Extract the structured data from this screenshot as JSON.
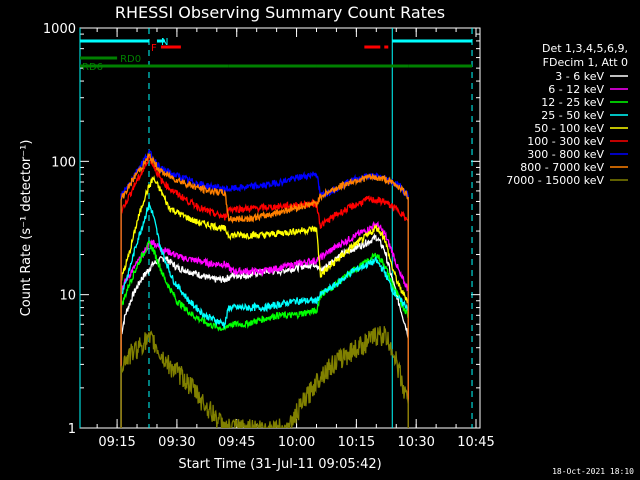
{
  "chart_data": {
    "type": "line",
    "title": "RHESSI Observing Summary Count Rates",
    "xlabel": "Start Time (31-Jul-11 09:05:42)",
    "ylabel": "Count Rate (s⁻¹ detector⁻¹)",
    "yscale": "log",
    "ylim": [
      1,
      1000
    ],
    "yticks": [
      {
        "value": 1,
        "label": "1"
      },
      {
        "value": 10,
        "label": "10"
      },
      {
        "value": 100,
        "label": "100"
      },
      {
        "value": 1000,
        "label": "1000"
      }
    ],
    "xlim": [
      "09:05:42",
      "10:46:00"
    ],
    "xticks": [
      {
        "time": "09:15",
        "label": "09:15"
      },
      {
        "time": "09:30",
        "label": "09:30"
      },
      {
        "time": "09:45",
        "label": "09:45"
      },
      {
        "time": "10:00",
        "label": "10:00"
      },
      {
        "time": "10:15",
        "label": "10:15"
      },
      {
        "time": "10:30",
        "label": "10:30"
      },
      {
        "time": "10:45",
        "label": "10:45"
      }
    ],
    "legend_header": [
      "Det 1,3,4,5,6,9,",
      "FDecim 1, Att 0"
    ],
    "legend_position": "top-right",
    "flags": [
      {
        "label": "N",
        "color": "#00ffff",
        "segments": [
          [
            "09:05:42",
            "09:23:00"
          ],
          [
            "09:25:00",
            "09:27:00"
          ],
          [
            "10:24:00",
            "10:44:00"
          ]
        ]
      },
      {
        "label": "F",
        "color": "#ff0000",
        "segments": [
          [
            "09:26:00",
            "09:31:00"
          ],
          [
            "10:17:00",
            "10:21:00"
          ],
          [
            "10:22:00",
            "10:23:00"
          ]
        ]
      },
      {
        "label": "RD0",
        "color": "#008000",
        "segments": [
          [
            "09:05:42",
            "09:15:00"
          ]
        ]
      },
      {
        "label": "RD6",
        "color": "#008000",
        "segments": [
          [
            "09:05:42",
            "09:43:00"
          ],
          [
            "09:43:00",
            "10:05:00"
          ],
          [
            "10:05:00",
            "10:28:00"
          ],
          [
            "10:28:00",
            "10:44:00"
          ]
        ]
      }
    ],
    "vlines": [
      {
        "time": "09:05:42",
        "color": "#00ffff",
        "style": "solid"
      },
      {
        "time": "09:23:00",
        "color": "#00ffff",
        "style": "dashed"
      },
      {
        "time": "10:24:00",
        "color": "#00ffff",
        "style": "solid"
      },
      {
        "time": "10:44:00",
        "color": "#00ffff",
        "style": "dashed"
      }
    ],
    "series": [
      {
        "name": "3 - 6 keV",
        "color": "#ffffff",
        "points": [
          [
            "09:16:00",
            5
          ],
          [
            "09:17:00",
            7
          ],
          [
            "09:19:00",
            10
          ],
          [
            "09:21:00",
            13
          ],
          [
            "09:24:00",
            17
          ],
          [
            "09:27:00",
            19
          ],
          [
            "09:30:00",
            16
          ],
          [
            "09:33:00",
            15
          ],
          [
            "09:36:00",
            14
          ],
          [
            "09:39:00",
            13
          ],
          [
            "09:41:00",
            13
          ],
          [
            "09:42:00",
            13
          ],
          [
            "09:44:00",
            14
          ],
          [
            "09:48:00",
            14
          ],
          [
            "09:52:00",
            15
          ],
          [
            "09:56:00",
            15
          ],
          [
            "10:00:00",
            16
          ],
          [
            "10:04:00",
            17
          ],
          [
            "10:05:00",
            17
          ],
          [
            "10:06:00",
            15
          ],
          [
            "10:10:00",
            19
          ],
          [
            "10:14:00",
            22
          ],
          [
            "10:18:00",
            25
          ],
          [
            "10:20:00",
            27
          ],
          [
            "10:22:00",
            22
          ],
          [
            "10:24:00",
            13
          ],
          [
            "10:26:00",
            8
          ],
          [
            "10:28:00",
            5
          ]
        ]
      },
      {
        "name": "6 - 12 keV",
        "color": "#ff00ff",
        "points": [
          [
            "09:16:00",
            11
          ],
          [
            "09:18:00",
            14
          ],
          [
            "09:21:00",
            19
          ],
          [
            "09:23:00",
            24
          ],
          [
            "09:24:00",
            25
          ],
          [
            "09:26:00",
            22
          ],
          [
            "09:28:00",
            21
          ],
          [
            "09:31:00",
            19
          ],
          [
            "09:35:00",
            18
          ],
          [
            "09:39:00",
            17
          ],
          [
            "09:42:00",
            17
          ],
          [
            "09:44:00",
            15
          ],
          [
            "09:48:00",
            15
          ],
          [
            "09:52:00",
            15
          ],
          [
            "09:56:00",
            16
          ],
          [
            "10:00:00",
            17
          ],
          [
            "10:04:00",
            18
          ],
          [
            "10:05:00",
            18
          ],
          [
            "10:06:00",
            19
          ],
          [
            "10:10:00",
            23
          ],
          [
            "10:14:00",
            27
          ],
          [
            "10:18:00",
            31
          ],
          [
            "10:20:00",
            34
          ],
          [
            "10:22:00",
            29
          ],
          [
            "10:24:00",
            21
          ],
          [
            "10:26:00",
            14
          ],
          [
            "10:28:00",
            11
          ]
        ]
      },
      {
        "name": "12 - 25 keV",
        "color": "#00ff00",
        "points": [
          [
            "09:16:00",
            8
          ],
          [
            "09:18:00",
            12
          ],
          [
            "09:21:00",
            19
          ],
          [
            "09:23:00",
            24
          ],
          [
            "09:24:00",
            22
          ],
          [
            "09:27:00",
            13
          ],
          [
            "09:30:00",
            9
          ],
          [
            "09:34:00",
            7
          ],
          [
            "09:38:00",
            6
          ],
          [
            "09:42:00",
            5.5
          ],
          [
            "09:43:00",
            6
          ],
          [
            "09:47:00",
            6
          ],
          [
            "09:51:00",
            6.5
          ],
          [
            "09:55:00",
            7
          ],
          [
            "09:59:00",
            7
          ],
          [
            "10:04:00",
            7.5
          ],
          [
            "10:05:00",
            7.5
          ],
          [
            "10:06:00",
            10
          ],
          [
            "10:10:00",
            12
          ],
          [
            "10:14:00",
            15
          ],
          [
            "10:18:00",
            18
          ],
          [
            "10:20:00",
            20
          ],
          [
            "10:22:00",
            17
          ],
          [
            "10:24:00",
            12
          ],
          [
            "10:26:00",
            9
          ],
          [
            "10:28:00",
            7
          ]
        ]
      },
      {
        "name": "25 - 50 keV",
        "color": "#00ffff",
        "points": [
          [
            "09:16:00",
            10
          ],
          [
            "09:18:00",
            15
          ],
          [
            "09:20:00",
            25
          ],
          [
            "09:22:00",
            38
          ],
          [
            "09:23:00",
            48
          ],
          [
            "09:24:00",
            40
          ],
          [
            "09:26:00",
            22
          ],
          [
            "09:29:00",
            13
          ],
          [
            "09:33:00",
            9
          ],
          [
            "09:37:00",
            7
          ],
          [
            "09:42:00",
            6
          ],
          [
            "09:43:00",
            8
          ],
          [
            "09:47:00",
            8
          ],
          [
            "09:52:00",
            8
          ],
          [
            "09:56:00",
            8.5
          ],
          [
            "10:00:00",
            9
          ],
          [
            "10:04:00",
            9
          ],
          [
            "10:05:00",
            9
          ],
          [
            "10:06:00",
            10
          ],
          [
            "10:10:00",
            12
          ],
          [
            "10:14:00",
            15
          ],
          [
            "10:18:00",
            17
          ],
          [
            "10:20:00",
            18
          ],
          [
            "10:22:00",
            15
          ],
          [
            "10:24:00",
            11
          ],
          [
            "10:26:00",
            9
          ],
          [
            "10:28:00",
            8
          ]
        ]
      },
      {
        "name": "50 - 100 keV",
        "color": "#ffff00",
        "points": [
          [
            "09:16:00",
            13
          ],
          [
            "09:18:00",
            20
          ],
          [
            "09:20:00",
            35
          ],
          [
            "09:22:00",
            55
          ],
          [
            "09:24:00",
            75
          ],
          [
            "09:26:00",
            60
          ],
          [
            "09:28:00",
            45
          ],
          [
            "09:31:00",
            40
          ],
          [
            "09:35:00",
            35
          ],
          [
            "09:39:00",
            33
          ],
          [
            "09:42:00",
            31
          ],
          [
            "09:43:00",
            28
          ],
          [
            "09:47:00",
            28
          ],
          [
            "09:52:00",
            28
          ],
          [
            "09:56:00",
            29
          ],
          [
            "10:00:00",
            30
          ],
          [
            "10:04:00",
            31
          ],
          [
            "10:05:00",
            31
          ],
          [
            "10:06:00",
            14
          ],
          [
            "10:10:00",
            18
          ],
          [
            "10:14:00",
            23
          ],
          [
            "10:18:00",
            28
          ],
          [
            "10:20:00",
            32
          ],
          [
            "10:22:00",
            27
          ],
          [
            "10:24:00",
            16
          ],
          [
            "10:26:00",
            11
          ],
          [
            "10:28:00",
            9
          ]
        ]
      },
      {
        "name": "100 - 300 keV",
        "color": "#ff0000",
        "points": [
          [
            "09:16:00",
            42
          ],
          [
            "09:18:00",
            55
          ],
          [
            "09:20:00",
            72
          ],
          [
            "09:22:00",
            90
          ],
          [
            "09:23:00",
            110
          ],
          [
            "09:24:00",
            95
          ],
          [
            "09:26:00",
            72
          ],
          [
            "09:29:00",
            60
          ],
          [
            "09:33:00",
            50
          ],
          [
            "09:37:00",
            43
          ],
          [
            "09:42:00",
            38
          ],
          [
            "09:43:00",
            44
          ],
          [
            "09:47:00",
            44
          ],
          [
            "09:52:00",
            45
          ],
          [
            "09:56:00",
            46
          ],
          [
            "10:00:00",
            47
          ],
          [
            "10:04:00",
            48
          ],
          [
            "10:05:00",
            48
          ],
          [
            "10:06:00",
            33
          ],
          [
            "10:10:00",
            40
          ],
          [
            "10:14:00",
            46
          ],
          [
            "10:18:00",
            52
          ],
          [
            "10:22:00",
            50
          ],
          [
            "10:26:00",
            42
          ],
          [
            "10:28:00",
            35
          ]
        ]
      },
      {
        "name": "300 - 800 keV",
        "color": "#0000ff",
        "points": [
          [
            "09:16:00",
            55
          ],
          [
            "09:18:00",
            68
          ],
          [
            "09:20:00",
            85
          ],
          [
            "09:22:00",
            105
          ],
          [
            "09:23:00",
            118
          ],
          [
            "09:24:00",
            105
          ],
          [
            "09:26:00",
            88
          ],
          [
            "09:29:00",
            80
          ],
          [
            "09:33:00",
            72
          ],
          [
            "09:37:00",
            66
          ],
          [
            "09:42:00",
            62
          ],
          [
            "09:43:00",
            62
          ],
          [
            "09:47:00",
            64
          ],
          [
            "09:52:00",
            66
          ],
          [
            "09:56:00",
            70
          ],
          [
            "10:00:00",
            75
          ],
          [
            "10:04:00",
            80
          ],
          [
            "10:05:00",
            82
          ],
          [
            "10:06:00",
            55
          ],
          [
            "10:10:00",
            63
          ],
          [
            "10:14:00",
            72
          ],
          [
            "10:18:00",
            78
          ],
          [
            "10:22:00",
            75
          ],
          [
            "10:26:00",
            65
          ],
          [
            "10:28:00",
            55
          ]
        ]
      },
      {
        "name": "800 - 7000 keV",
        "color": "#ff8000",
        "points": [
          [
            "09:16:00",
            52
          ],
          [
            "09:18:00",
            65
          ],
          [
            "09:20:00",
            82
          ],
          [
            "09:22:00",
            98
          ],
          [
            "09:23:00",
            110
          ],
          [
            "09:24:00",
            100
          ],
          [
            "09:26:00",
            84
          ],
          [
            "09:29:00",
            75
          ],
          [
            "09:33:00",
            67
          ],
          [
            "09:37:00",
            61
          ],
          [
            "09:42:00",
            58
          ],
          [
            "09:43:00",
            37
          ],
          [
            "09:47:00",
            37
          ],
          [
            "09:52:00",
            39
          ],
          [
            "09:56:00",
            42
          ],
          [
            "10:00:00",
            45
          ],
          [
            "10:04:00",
            48
          ],
          [
            "10:05:00",
            48
          ],
          [
            "10:06:00",
            55
          ],
          [
            "10:10:00",
            63
          ],
          [
            "10:14:00",
            71
          ],
          [
            "10:18:00",
            76
          ],
          [
            "10:22:00",
            74
          ],
          [
            "10:26:00",
            64
          ],
          [
            "10:28:00",
            54
          ]
        ]
      },
      {
        "name": "7000 - 15000 keV",
        "color": "#808000",
        "points": [
          [
            "09:16:00",
            3
          ],
          [
            "09:18:00",
            3.5
          ],
          [
            "09:20:00",
            4
          ],
          [
            "09:22:00",
            4.5
          ],
          [
            "09:24:00",
            4.5
          ],
          [
            "09:26:00",
            3.5
          ],
          [
            "09:28:00",
            3
          ],
          [
            "09:31:00",
            2.5
          ],
          [
            "09:34:00",
            2
          ],
          [
            "09:37:00",
            1.5
          ],
          [
            "09:40:00",
            1.2
          ],
          [
            "09:42:00",
            1
          ],
          [
            "09:58:00",
            1
          ],
          [
            "10:00:00",
            1.3
          ],
          [
            "10:03:00",
            1.8
          ],
          [
            "10:06:00",
            2.5
          ],
          [
            "10:09:00",
            3
          ],
          [
            "10:12:00",
            3.5
          ],
          [
            "10:15:00",
            4
          ],
          [
            "10:18:00",
            4.5
          ],
          [
            "10:20:00",
            5
          ],
          [
            "10:22:00",
            5
          ],
          [
            "10:24:00",
            4
          ],
          [
            "10:26:00",
            2.5
          ],
          [
            "10:28:00",
            1.5
          ]
        ]
      }
    ]
  },
  "footer": {
    "stamp": "18-Oct-2021 18:10"
  }
}
